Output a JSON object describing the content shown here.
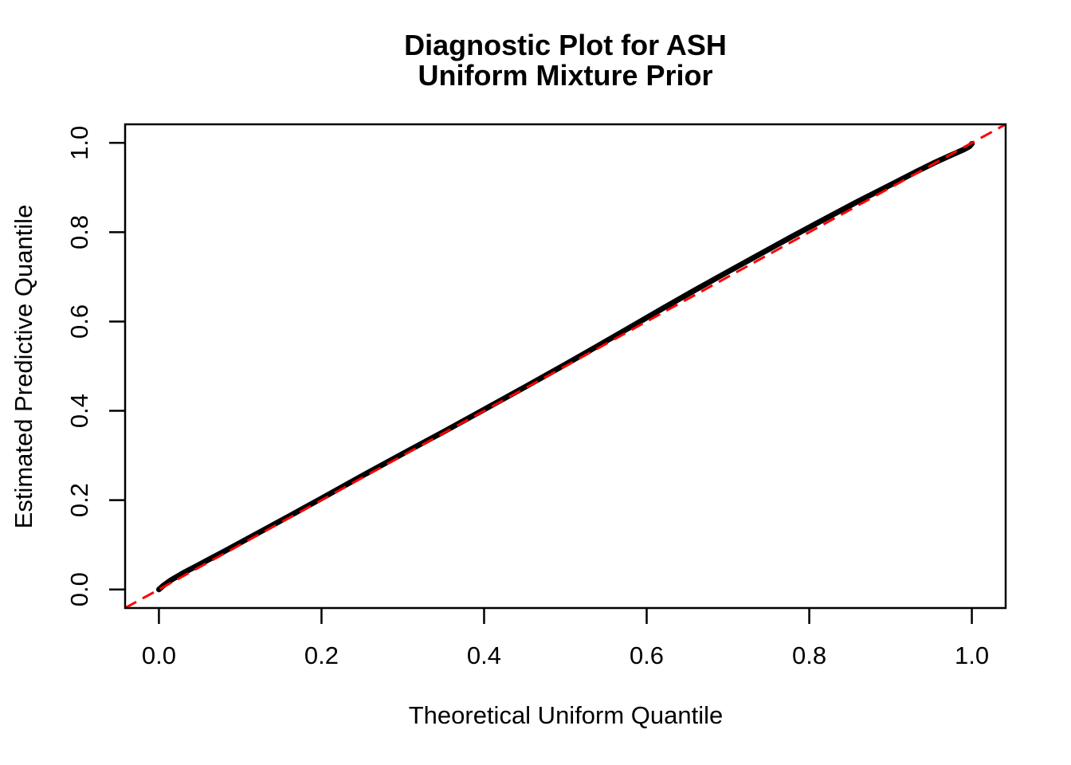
{
  "figure": {
    "title_line1": "Diagnostic Plot for ASH",
    "title_line2": "Uniform Mixture Prior",
    "background_color": "#ffffff"
  },
  "chart_data": {
    "type": "scatter",
    "title": "Diagnostic Plot for ASH\nUniform Mixture Prior",
    "xlabel": "Theoretical Uniform Quantile",
    "ylabel": "Estimated Predictive Quantile",
    "xlim": [
      -0.0416,
      1.0416
    ],
    "ylim": [
      -0.0416,
      1.0416
    ],
    "x_tick_labels": [
      "0.0",
      "0.2",
      "0.4",
      "0.6",
      "0.8",
      "1.0"
    ],
    "y_tick_labels": [
      "0.0",
      "0.2",
      "0.4",
      "0.6",
      "0.8",
      "1.0"
    ],
    "x_tick_values": [
      0.0,
      0.2,
      0.4,
      0.6,
      0.8,
      1.0
    ],
    "y_tick_values": [
      0.0,
      0.2,
      0.4,
      0.6,
      0.8,
      1.0
    ],
    "grid": false,
    "legend": null,
    "series": [
      {
        "name": "estimated-predictive-quantiles",
        "type": "curve-of-points",
        "color": "#000000",
        "points": [
          [
            0.0,
            0.0
          ],
          [
            0.005,
            0.008
          ],
          [
            0.015,
            0.021
          ],
          [
            0.03,
            0.037
          ],
          [
            0.05,
            0.056
          ],
          [
            0.08,
            0.085
          ],
          [
            0.12,
            0.1245
          ],
          [
            0.16,
            0.164
          ],
          [
            0.2,
            0.204
          ],
          [
            0.25,
            0.2545
          ],
          [
            0.3,
            0.304
          ],
          [
            0.35,
            0.353
          ],
          [
            0.4,
            0.403
          ],
          [
            0.45,
            0.453
          ],
          [
            0.5,
            0.504
          ],
          [
            0.54,
            0.5455
          ],
          [
            0.58,
            0.5875
          ],
          [
            0.62,
            0.6295
          ],
          [
            0.66,
            0.671
          ],
          [
            0.7,
            0.7115
          ],
          [
            0.74,
            0.7515
          ],
          [
            0.78,
            0.7915
          ],
          [
            0.82,
            0.8305
          ],
          [
            0.86,
            0.869
          ],
          [
            0.9,
            0.906
          ],
          [
            0.93,
            0.934
          ],
          [
            0.955,
            0.9565
          ],
          [
            0.975,
            0.973
          ],
          [
            0.99,
            0.985
          ],
          [
            0.997,
            0.992
          ],
          [
            1.0,
            0.998
          ]
        ]
      },
      {
        "name": "identity-reference-line",
        "type": "line",
        "style": "dashed",
        "color": "#ff0000",
        "from": [
          0,
          0
        ],
        "to": [
          1,
          1
        ]
      }
    ],
    "colors": {
      "curve": "#000000",
      "reference_line": "#ff0000",
      "axis": "#000000",
      "background": "#ffffff"
    }
  }
}
